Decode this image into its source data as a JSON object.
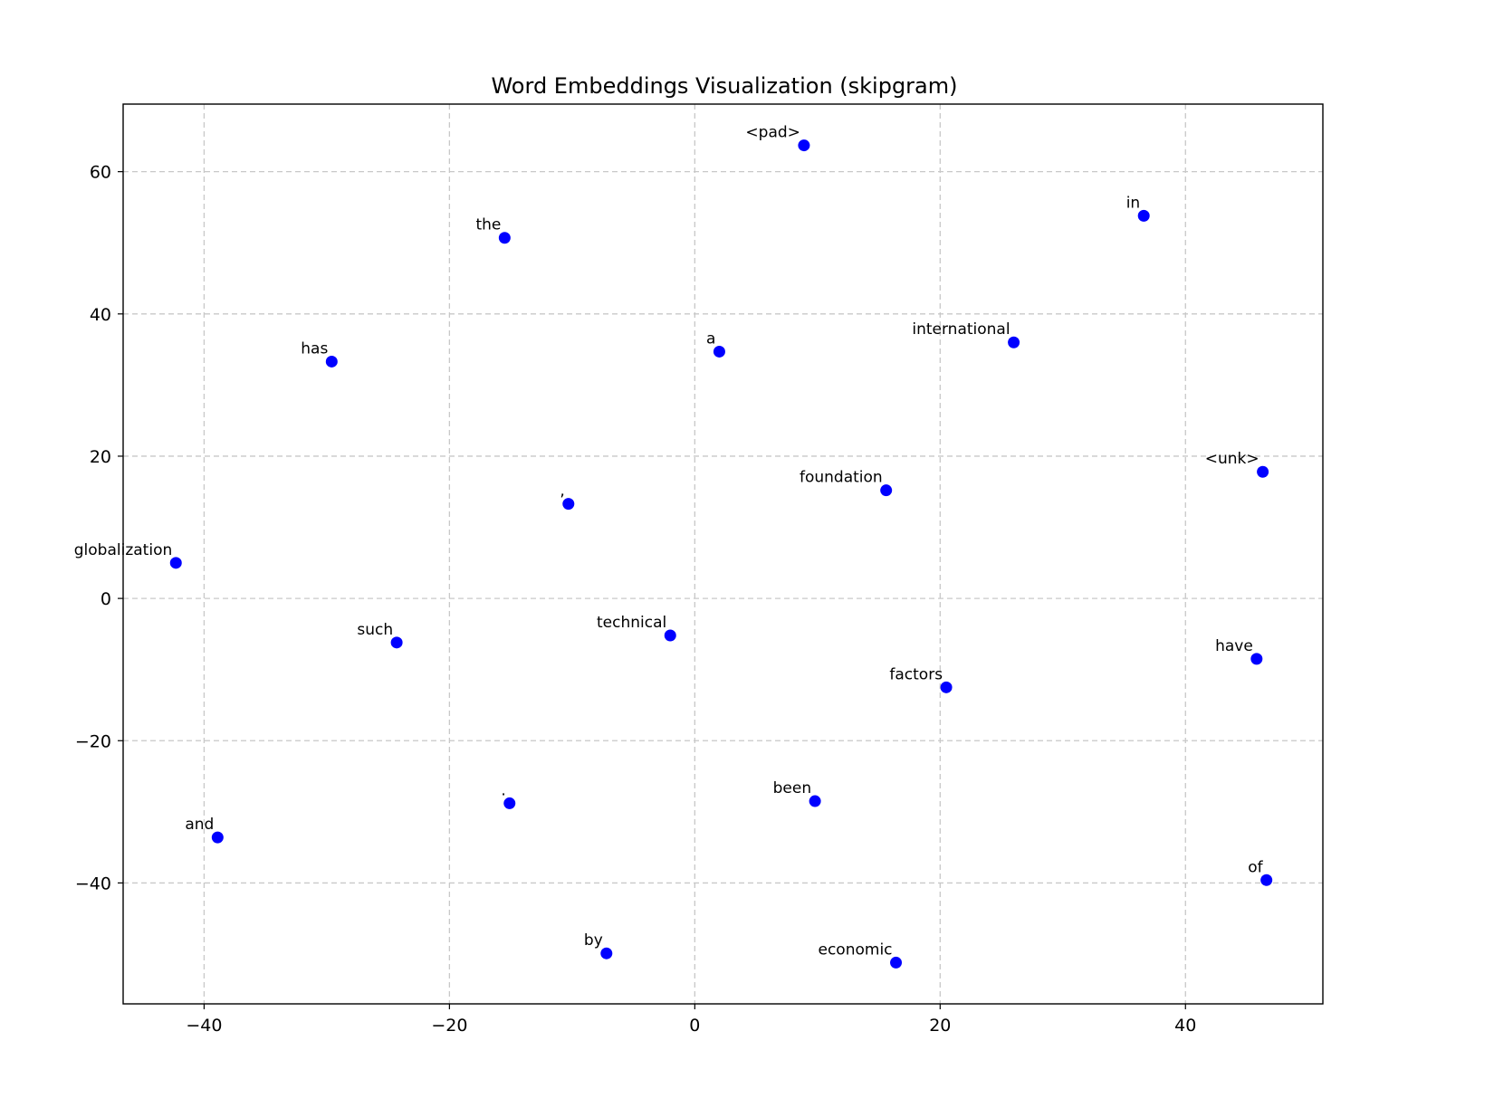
{
  "chart_data": {
    "type": "scatter",
    "title": "Word Embeddings Visualization (skipgram)",
    "xlabel": "",
    "ylabel": "",
    "xlim": [
      -46.6,
      51.2
    ],
    "ylim": [
      -57,
      69.5
    ],
    "x_ticks": [
      -40,
      -20,
      0,
      20,
      40
    ],
    "y_ticks": [
      -40,
      -20,
      0,
      20,
      40,
      60
    ],
    "x_tick_labels": [
      "−40",
      "−20",
      "0",
      "20",
      "40"
    ],
    "y_tick_labels": [
      "−40",
      "−20",
      "0",
      "20",
      "40",
      "60"
    ],
    "grid": true,
    "point_color": "#0000ff",
    "points": [
      {
        "label": "<pad>",
        "x": 8.9,
        "y": 63.7
      },
      {
        "label": "in",
        "x": 36.6,
        "y": 53.8
      },
      {
        "label": "the",
        "x": -15.5,
        "y": 50.7
      },
      {
        "label": "international",
        "x": 26.0,
        "y": 36.0
      },
      {
        "label": "a",
        "x": 2.0,
        "y": 34.7
      },
      {
        "label": "has",
        "x": -29.6,
        "y": 33.3
      },
      {
        "label": "<unk>",
        "x": 46.3,
        "y": 17.8
      },
      {
        "label": "foundation",
        "x": 15.6,
        "y": 15.2
      },
      {
        "label": ",",
        "x": -10.3,
        "y": 13.3
      },
      {
        "label": "globalization",
        "x": -42.3,
        "y": 5.0
      },
      {
        "label": "technical",
        "x": -2.0,
        "y": -5.2
      },
      {
        "label": "such",
        "x": -24.3,
        "y": -6.2
      },
      {
        "label": "have",
        "x": 45.8,
        "y": -8.5
      },
      {
        "label": "factors",
        "x": 20.5,
        "y": -12.5
      },
      {
        "label": "been",
        "x": 9.8,
        "y": -28.5
      },
      {
        "label": ".",
        "x": -15.1,
        "y": -28.8
      },
      {
        "label": "and",
        "x": -38.9,
        "y": -33.6
      },
      {
        "label": "of",
        "x": 46.6,
        "y": -39.6
      },
      {
        "label": "by",
        "x": -7.2,
        "y": -49.9
      },
      {
        "label": "economic",
        "x": 16.4,
        "y": -51.2
      }
    ]
  }
}
